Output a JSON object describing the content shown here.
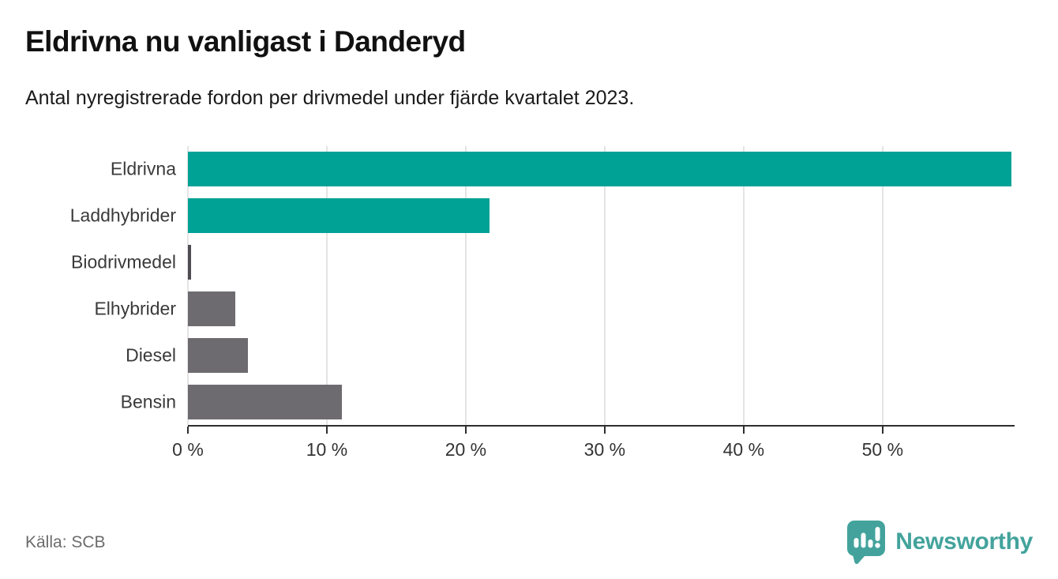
{
  "header": {
    "title": "Eldrivna nu vanligast i Danderyd",
    "subtitle": "Antal nyregistrerade fordon per drivmedel under fjärde kvartalet 2023."
  },
  "footer": {
    "source": "Källa: SCB",
    "brand": "Newsworthy"
  },
  "colors": {
    "teal": "#00a296",
    "gray": "#6e6b70",
    "thin_bar": "#4e4c52",
    "grid": "#e4e4e4",
    "axis": "#2e2e2e",
    "logo_teal": "#43a39c"
  },
  "chart_data": {
    "type": "bar",
    "orientation": "horizontal",
    "title": "Eldrivna nu vanligast i Danderyd",
    "subtitle": "Antal nyregistrerade fordon per drivmedel under fjärde kvartalet 2023.",
    "categories": [
      "Eldrivna",
      "Laddhybrider",
      "Biodrivmedel",
      "Elhybrider",
      "Diesel",
      "Bensin"
    ],
    "values": [
      59.3,
      21.7,
      0.2,
      3.4,
      4.3,
      11.1
    ],
    "unit": "%",
    "bar_colors": [
      "#00a296",
      "#00a296",
      "#4e4c52",
      "#6e6b70",
      "#6e6b70",
      "#6e6b70"
    ],
    "xlim": [
      0,
      59.5
    ],
    "xticks": [
      0,
      10,
      20,
      30,
      40,
      50
    ],
    "xtick_labels": [
      "0 %",
      "10 %",
      "20 %",
      "30 %",
      "40 %",
      "50 %"
    ],
    "grid": "vertical",
    "legend": "none",
    "source": "SCB"
  }
}
